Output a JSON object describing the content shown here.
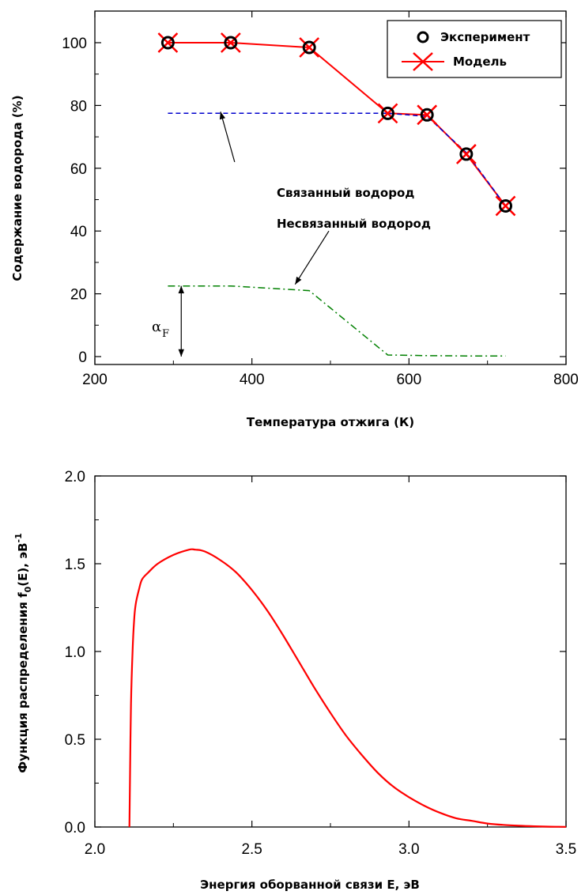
{
  "chart_data": [
    {
      "type": "line",
      "xlabel": "Температура отжига (К)",
      "ylabel": "Содержание водорода (%)",
      "xlim": [
        200,
        800
      ],
      "ylim": [
        -5,
        110
      ],
      "xticks": [
        "200",
        "400",
        "600",
        "800"
      ],
      "yticks": [
        "0",
        "20",
        "40",
        "60",
        "80",
        "100"
      ],
      "legend_position": "top-right",
      "series": [
        {
          "name": "Эксперимент",
          "marker": "circle",
          "color": "#000000",
          "x": [
            293,
            373,
            473,
            573,
            623,
            673,
            723
          ],
          "y": [
            100,
            100,
            98.5,
            77.5,
            77,
            64.5,
            48
          ]
        },
        {
          "name": "Модель",
          "marker": "x",
          "line": "solid",
          "color": "#ff0000",
          "x": [
            293,
            373,
            473,
            573,
            623,
            673,
            723
          ],
          "y": [
            100,
            100,
            98.5,
            77.5,
            77,
            64.5,
            48
          ]
        }
      ],
      "extra_lines": [
        {
          "style": "dashed",
          "color": "#0000cc",
          "x": [
            293,
            473,
            573,
            623,
            673,
            723
          ],
          "y": [
            77.5,
            77.5,
            77.5,
            76.5,
            65,
            48
          ]
        },
        {
          "style": "dashdot",
          "color": "#008000",
          "x": [
            293,
            373,
            473,
            573,
            623,
            673,
            723
          ],
          "y": [
            22.5,
            22.5,
            21,
            0.5,
            0.3,
            0.2,
            0.2
          ]
        }
      ],
      "annotations": {
        "bound": "Связанный водород",
        "unbound": "Несвязанный водород",
        "alpha": "α",
        "alpha_sub": "F"
      },
      "arrow_bound": {
        "from": [
          378,
          62
        ],
        "to": [
          360,
          78
        ]
      },
      "arrow_unbound": {
        "from": [
          498,
          40
        ],
        "to": [
          455,
          23
        ]
      },
      "alpha_arrow": {
        "x": 310,
        "y1": 22.5,
        "y2": 0
      }
    },
    {
      "type": "line",
      "xlabel": "Энергия оборванной связи E, эВ",
      "ylabel": "Функция распределения f₀(E), эВ⁻¹",
      "ylabel_parts": [
        "Функция распределения f",
        "0",
        "(E), эВ",
        "-1"
      ],
      "xlim": [
        2.0,
        3.5
      ],
      "ylim": [
        0,
        2.0
      ],
      "xticks": [
        "2.0",
        "2.5",
        "3.0",
        "3.5"
      ],
      "yticks": [
        "0.0",
        "0.5",
        "1.0",
        "1.5",
        "2.0"
      ],
      "series": [
        {
          "name": "",
          "color": "#ff0000",
          "x": [
            2.11,
            2.112,
            2.115,
            2.12,
            2.125,
            2.13,
            2.14,
            2.15,
            2.17,
            2.2,
            2.25,
            2.3,
            2.32,
            2.35,
            2.4,
            2.45,
            2.5,
            2.55,
            2.6,
            2.65,
            2.7,
            2.75,
            2.8,
            2.85,
            2.9,
            2.95,
            3.0,
            3.05,
            3.1,
            3.15,
            3.2,
            3.25,
            3.3,
            3.35,
            3.4,
            3.45,
            3.5
          ],
          "y": [
            0,
            0.3,
            0.7,
            1.0,
            1.18,
            1.27,
            1.35,
            1.41,
            1.45,
            1.5,
            1.55,
            1.58,
            1.58,
            1.57,
            1.52,
            1.45,
            1.35,
            1.23,
            1.09,
            0.94,
            0.79,
            0.65,
            0.52,
            0.41,
            0.31,
            0.23,
            0.17,
            0.12,
            0.08,
            0.05,
            0.035,
            0.02,
            0.012,
            0.007,
            0.004,
            0.002,
            0.001
          ]
        }
      ]
    }
  ]
}
